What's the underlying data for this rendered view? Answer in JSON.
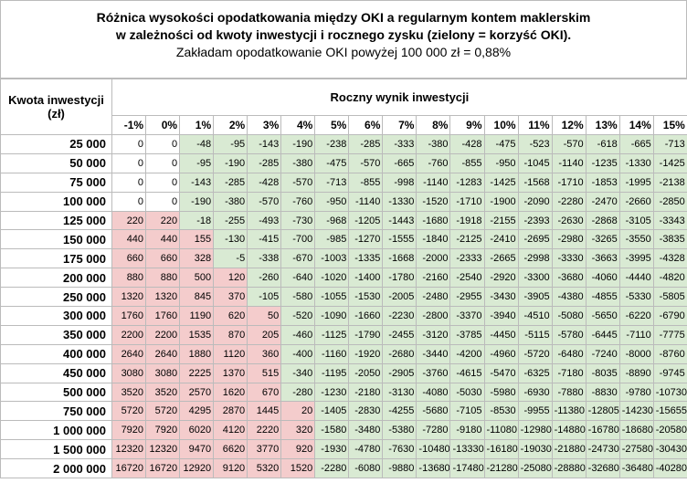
{
  "header": {
    "title_line1": "Różnica wysokości opodatkowania między OKI a regularnym kontem maklerskim",
    "title_line2": "w zależności od kwoty inwestycji i rocznego zysku (zielony = korzyść OKI).",
    "subtitle": "Zakładam opodatkowanie OKI powyżej 100 000 zł = 0,88%"
  },
  "table": {
    "row_header": "Kwota inwestycji (zł)",
    "column_group": "Roczny wynik inwestycji",
    "columns": [
      "-1%",
      "0%",
      "1%",
      "2%",
      "3%",
      "4%",
      "5%",
      "6%",
      "7%",
      "8%",
      "9%",
      "10%",
      "11%",
      "12%",
      "13%",
      "14%",
      "15%"
    ],
    "rows": [
      {
        "label": "25 000",
        "values": [
          0,
          0,
          -48,
          -95,
          -143,
          -190,
          -238,
          -285,
          -333,
          -380,
          -428,
          -475,
          -523,
          -570,
          -618,
          -665,
          -713
        ]
      },
      {
        "label": "50 000",
        "values": [
          0,
          0,
          -95,
          -190,
          -285,
          -380,
          -475,
          -570,
          -665,
          -760,
          -855,
          -950,
          -1045,
          -1140,
          -1235,
          -1330,
          -1425
        ]
      },
      {
        "label": "75 000",
        "values": [
          0,
          0,
          -143,
          -285,
          -428,
          -570,
          -713,
          -855,
          -998,
          -1140,
          -1283,
          -1425,
          -1568,
          -1710,
          -1853,
          -1995,
          -2138
        ]
      },
      {
        "label": "100 000",
        "values": [
          0,
          0,
          -190,
          -380,
          -570,
          -760,
          -950,
          -1140,
          -1330,
          -1520,
          -1710,
          -1900,
          -2090,
          -2280,
          -2470,
          -2660,
          -2850
        ]
      },
      {
        "label": "125 000",
        "values": [
          220,
          220,
          -18,
          -255,
          -493,
          -730,
          -968,
          -1205,
          -1443,
          -1680,
          -1918,
          -2155,
          -2393,
          -2630,
          -2868,
          -3105,
          -3343
        ]
      },
      {
        "label": "150 000",
        "values": [
          440,
          440,
          155,
          -130,
          -415,
          -700,
          -985,
          -1270,
          -1555,
          -1840,
          -2125,
          -2410,
          -2695,
          -2980,
          -3265,
          -3550,
          -3835
        ]
      },
      {
        "label": "175 000",
        "values": [
          660,
          660,
          328,
          -5,
          -338,
          -670,
          -1003,
          -1335,
          -1668,
          -2000,
          -2333,
          -2665,
          -2998,
          -3330,
          -3663,
          -3995,
          -4328
        ]
      },
      {
        "label": "200 000",
        "values": [
          880,
          880,
          500,
          120,
          -260,
          -640,
          -1020,
          -1400,
          -1780,
          -2160,
          -2540,
          -2920,
          -3300,
          -3680,
          -4060,
          -4440,
          -4820
        ]
      },
      {
        "label": "250 000",
        "values": [
          1320,
          1320,
          845,
          370,
          -105,
          -580,
          -1055,
          -1530,
          -2005,
          -2480,
          -2955,
          -3430,
          -3905,
          -4380,
          -4855,
          -5330,
          -5805
        ]
      },
      {
        "label": "300 000",
        "values": [
          1760,
          1760,
          1190,
          620,
          50,
          -520,
          -1090,
          -1660,
          -2230,
          -2800,
          -3370,
          -3940,
          -4510,
          -5080,
          -5650,
          -6220,
          -6790
        ]
      },
      {
        "label": "350 000",
        "values": [
          2200,
          2200,
          1535,
          870,
          205,
          -460,
          -1125,
          -1790,
          -2455,
          -3120,
          -3785,
          -4450,
          -5115,
          -5780,
          -6445,
          -7110,
          -7775
        ]
      },
      {
        "label": "400 000",
        "values": [
          2640,
          2640,
          1880,
          1120,
          360,
          -400,
          -1160,
          -1920,
          -2680,
          -3440,
          -4200,
          -4960,
          -5720,
          -6480,
          -7240,
          -8000,
          -8760
        ]
      },
      {
        "label": "450 000",
        "values": [
          3080,
          3080,
          2225,
          1370,
          515,
          -340,
          -1195,
          -2050,
          -2905,
          -3760,
          -4615,
          -5470,
          -6325,
          -7180,
          -8035,
          -8890,
          -9745
        ]
      },
      {
        "label": "500 000",
        "values": [
          3520,
          3520,
          2570,
          1620,
          670,
          -280,
          -1230,
          -2180,
          -3130,
          -4080,
          -5030,
          -5980,
          -6930,
          -7880,
          -8830,
          -9780,
          -10730
        ]
      },
      {
        "label": "750 000",
        "values": [
          5720,
          5720,
          4295,
          2870,
          1445,
          20,
          -1405,
          -2830,
          -4255,
          -5680,
          -7105,
          -8530,
          -9955,
          -11380,
          -12805,
          -14230,
          -15655
        ]
      },
      {
        "label": "1 000 000",
        "values": [
          7920,
          7920,
          6020,
          4120,
          2220,
          320,
          -1580,
          -3480,
          -5380,
          -7280,
          -9180,
          -11080,
          -12980,
          -14880,
          -16780,
          -18680,
          -20580
        ]
      },
      {
        "label": "1 500 000",
        "values": [
          12320,
          12320,
          9470,
          6620,
          3770,
          920,
          -1930,
          -4780,
          -7630,
          -10480,
          -13330,
          -16180,
          -19030,
          -21880,
          -24730,
          -27580,
          -30430
        ]
      },
      {
        "label": "2 000 000",
        "values": [
          16720,
          16720,
          12920,
          9120,
          5320,
          1520,
          -2280,
          -6080,
          -9880,
          -13680,
          -17480,
          -21280,
          -25080,
          -28880,
          -32680,
          -36480,
          -40280
        ]
      }
    ]
  }
}
